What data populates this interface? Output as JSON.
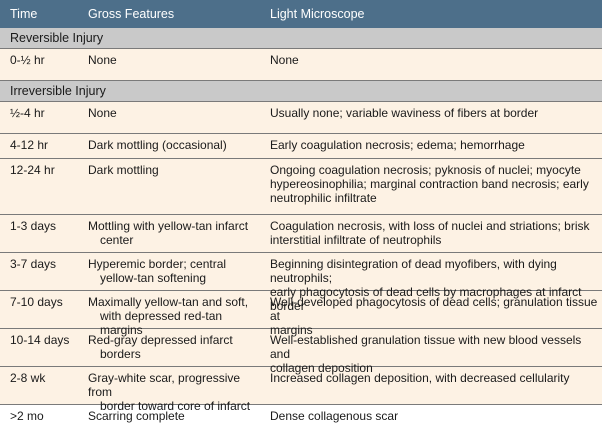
{
  "header": {
    "time": "Time",
    "gross": "Gross Features",
    "light": "Light Microscope"
  },
  "sections": {
    "reversible": "Reversible Injury",
    "irreversible": "Irreversible Injury"
  },
  "rows": [
    {
      "time": "0-½ hr",
      "gross": [
        "None"
      ],
      "light": [
        "None"
      ]
    },
    {
      "time": "½-4 hr",
      "gross": [
        "None"
      ],
      "light": [
        "Usually none; variable waviness of fibers at border"
      ]
    },
    {
      "time": "4-12 hr",
      "gross": [
        "Dark mottling (occasional)"
      ],
      "light": [
        "Early coagulation necrosis; edema; hemorrhage"
      ]
    },
    {
      "time": "12-24 hr",
      "gross": [
        "Dark mottling"
      ],
      "light": [
        "Ongoing coagulation necrosis; pyknosis of nuclei; myocyte",
        "hypereosinophilia; marginal contraction band necrosis; early",
        "neutrophilic infiltrate"
      ]
    },
    {
      "time": "1-3 days",
      "gross": [
        "Mottling with yellow-tan infarct",
        "center"
      ],
      "light": [
        "Coagulation necrosis, with loss of nuclei and striations; brisk",
        "interstitial infiltrate of neutrophils"
      ]
    },
    {
      "time": "3-7 days",
      "gross": [
        "Hyperemic border; central",
        "yellow-tan softening"
      ],
      "light": [
        "Beginning disintegration of dead myofibers, with dying neutrophils;",
        "early phagocytosis of dead cells by macrophages at infarct border"
      ]
    },
    {
      "time": "7-10 days",
      "gross": [
        "Maximally yellow-tan and soft,",
        "with depressed red-tan margins"
      ],
      "light": [
        "Well-developed phagocytosis of dead cells; granulation tissue at",
        "margins"
      ]
    },
    {
      "time": "10-14 days",
      "gross": [
        "Red-gray depressed infarct",
        "borders"
      ],
      "light": [
        "Well-established granulation tissue with new blood vessels and",
        "collagen deposition"
      ]
    },
    {
      "time": "2-8 wk",
      "gross": [
        "Gray-white scar, progressive from",
        "border toward core of infarct"
      ],
      "light": [
        "Increased collagen deposition, with decreased cellularity"
      ]
    },
    {
      "time": ">2 mo",
      "gross": [
        "Scarring complete"
      ],
      "light": [
        "Dense collagenous scar"
      ]
    }
  ]
}
